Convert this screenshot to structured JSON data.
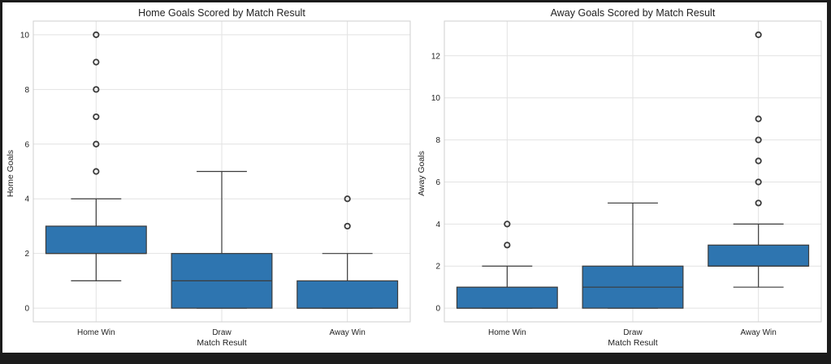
{
  "chart_data": [
    {
      "type": "box",
      "title": "Home Goals Scored by Match Result",
      "xlabel": "Match Result",
      "ylabel": "Home Goals",
      "categories": [
        "Home Win",
        "Draw",
        "Away Win"
      ],
      "ylim": [
        -0.5,
        10.5
      ],
      "yticks": [
        0,
        2,
        4,
        6,
        8,
        10
      ],
      "grid": true,
      "box_color": "#2e75b0",
      "boxes": [
        {
          "category": "Home Win",
          "whisker_low": 1,
          "q1": 2,
          "median": 2,
          "q3": 3,
          "whisker_high": 4,
          "outliers": [
            5,
            6,
            7,
            8,
            9,
            10
          ]
        },
        {
          "category": "Draw",
          "whisker_low": 0,
          "q1": 0,
          "median": 1,
          "q3": 2,
          "whisker_high": 5,
          "outliers": []
        },
        {
          "category": "Away Win",
          "whisker_low": 0,
          "q1": 0,
          "median": 0,
          "q3": 1,
          "whisker_high": 2,
          "outliers": [
            3,
            4
          ]
        }
      ]
    },
    {
      "type": "box",
      "title": "Away Goals Scored by Match Result",
      "xlabel": "Match Result",
      "ylabel": "Away Goals",
      "categories": [
        "Home Win",
        "Draw",
        "Away Win"
      ],
      "ylim": [
        -0.65,
        13.65
      ],
      "yticks": [
        0,
        2,
        4,
        6,
        8,
        10,
        12
      ],
      "grid": true,
      "box_color": "#2e75b0",
      "boxes": [
        {
          "category": "Home Win",
          "whisker_low": 0,
          "q1": 0,
          "median": 0,
          "q3": 1,
          "whisker_high": 2,
          "outliers": [
            3,
            4
          ]
        },
        {
          "category": "Draw",
          "whisker_low": 0,
          "q1": 0,
          "median": 1,
          "q3": 2,
          "whisker_high": 5,
          "outliers": []
        },
        {
          "category": "Away Win",
          "whisker_low": 1,
          "q1": 2,
          "median": 2,
          "q3": 3,
          "whisker_high": 4,
          "outliers": [
            5,
            6,
            7,
            8,
            9,
            13
          ]
        }
      ]
    }
  ]
}
